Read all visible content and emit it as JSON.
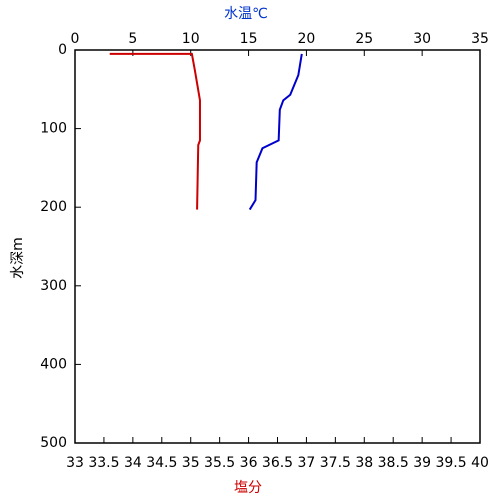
{
  "chart_data": {
    "type": "line",
    "xlabel": "塩分",
    "x2label": "水温℃",
    "ylabel": "水深m",
    "xlim": [
      33,
      40
    ],
    "xticks": [
      33,
      33.5,
      34,
      34.5,
      35,
      35.5,
      36,
      36.5,
      37,
      37.5,
      38,
      38.5,
      39,
      39.5,
      40
    ],
    "x2lim": [
      0,
      35
    ],
    "x2ticks": [
      0,
      5,
      10,
      15,
      20,
      25,
      30,
      35
    ],
    "ylim": [
      0,
      500
    ],
    "yticks": [
      0,
      100,
      200,
      300,
      400,
      500
    ],
    "y_inverted": true,
    "series": [
      {
        "color": "#cc0000",
        "x": [
          33.6,
          35.02,
          35.07,
          35.16,
          35.16,
          35.13,
          35.11
        ],
        "values": [
          5,
          5,
          25,
          64,
          115,
          121,
          203
        ]
      },
      {
        "color": "#0000cc",
        "axis": "x2",
        "x": [
          19.6,
          19.3,
          18.6,
          18.0,
          17.7,
          17.6,
          16.2,
          15.7,
          15.6,
          15.1
        ],
        "values": [
          5,
          32,
          57,
          64,
          76,
          115,
          125,
          143,
          191,
          203
        ]
      }
    ]
  }
}
